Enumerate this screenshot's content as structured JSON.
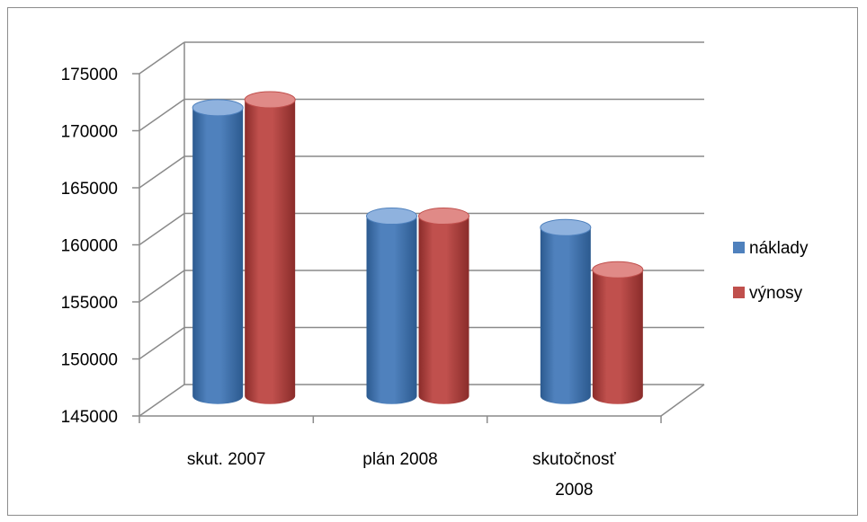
{
  "chart_data": {
    "type": "bar",
    "title": "",
    "xlabel": "",
    "ylabel": "",
    "categories": [
      [
        "skut. 2007"
      ],
      [
        "plán 2008"
      ],
      [
        "skutočnosť",
        "2008"
      ]
    ],
    "series": [
      {
        "name": "náklady",
        "values": [
          170500,
          161000,
          160000
        ],
        "color": "#4f81bd",
        "dark": "#2c5a8f",
        "light": "#8fb2de"
      },
      {
        "name": "výnosy",
        "values": [
          171200,
          161000,
          156300
        ],
        "color": "#c0504d",
        "dark": "#8a2c2a",
        "light": "#e08a87"
      }
    ],
    "ylim": [
      145000,
      175000
    ],
    "yticks": [
      145000,
      150000,
      155000,
      160000,
      165000,
      170000,
      175000
    ],
    "grid": true,
    "legend_position": "right",
    "style": "3d-cylinder"
  }
}
